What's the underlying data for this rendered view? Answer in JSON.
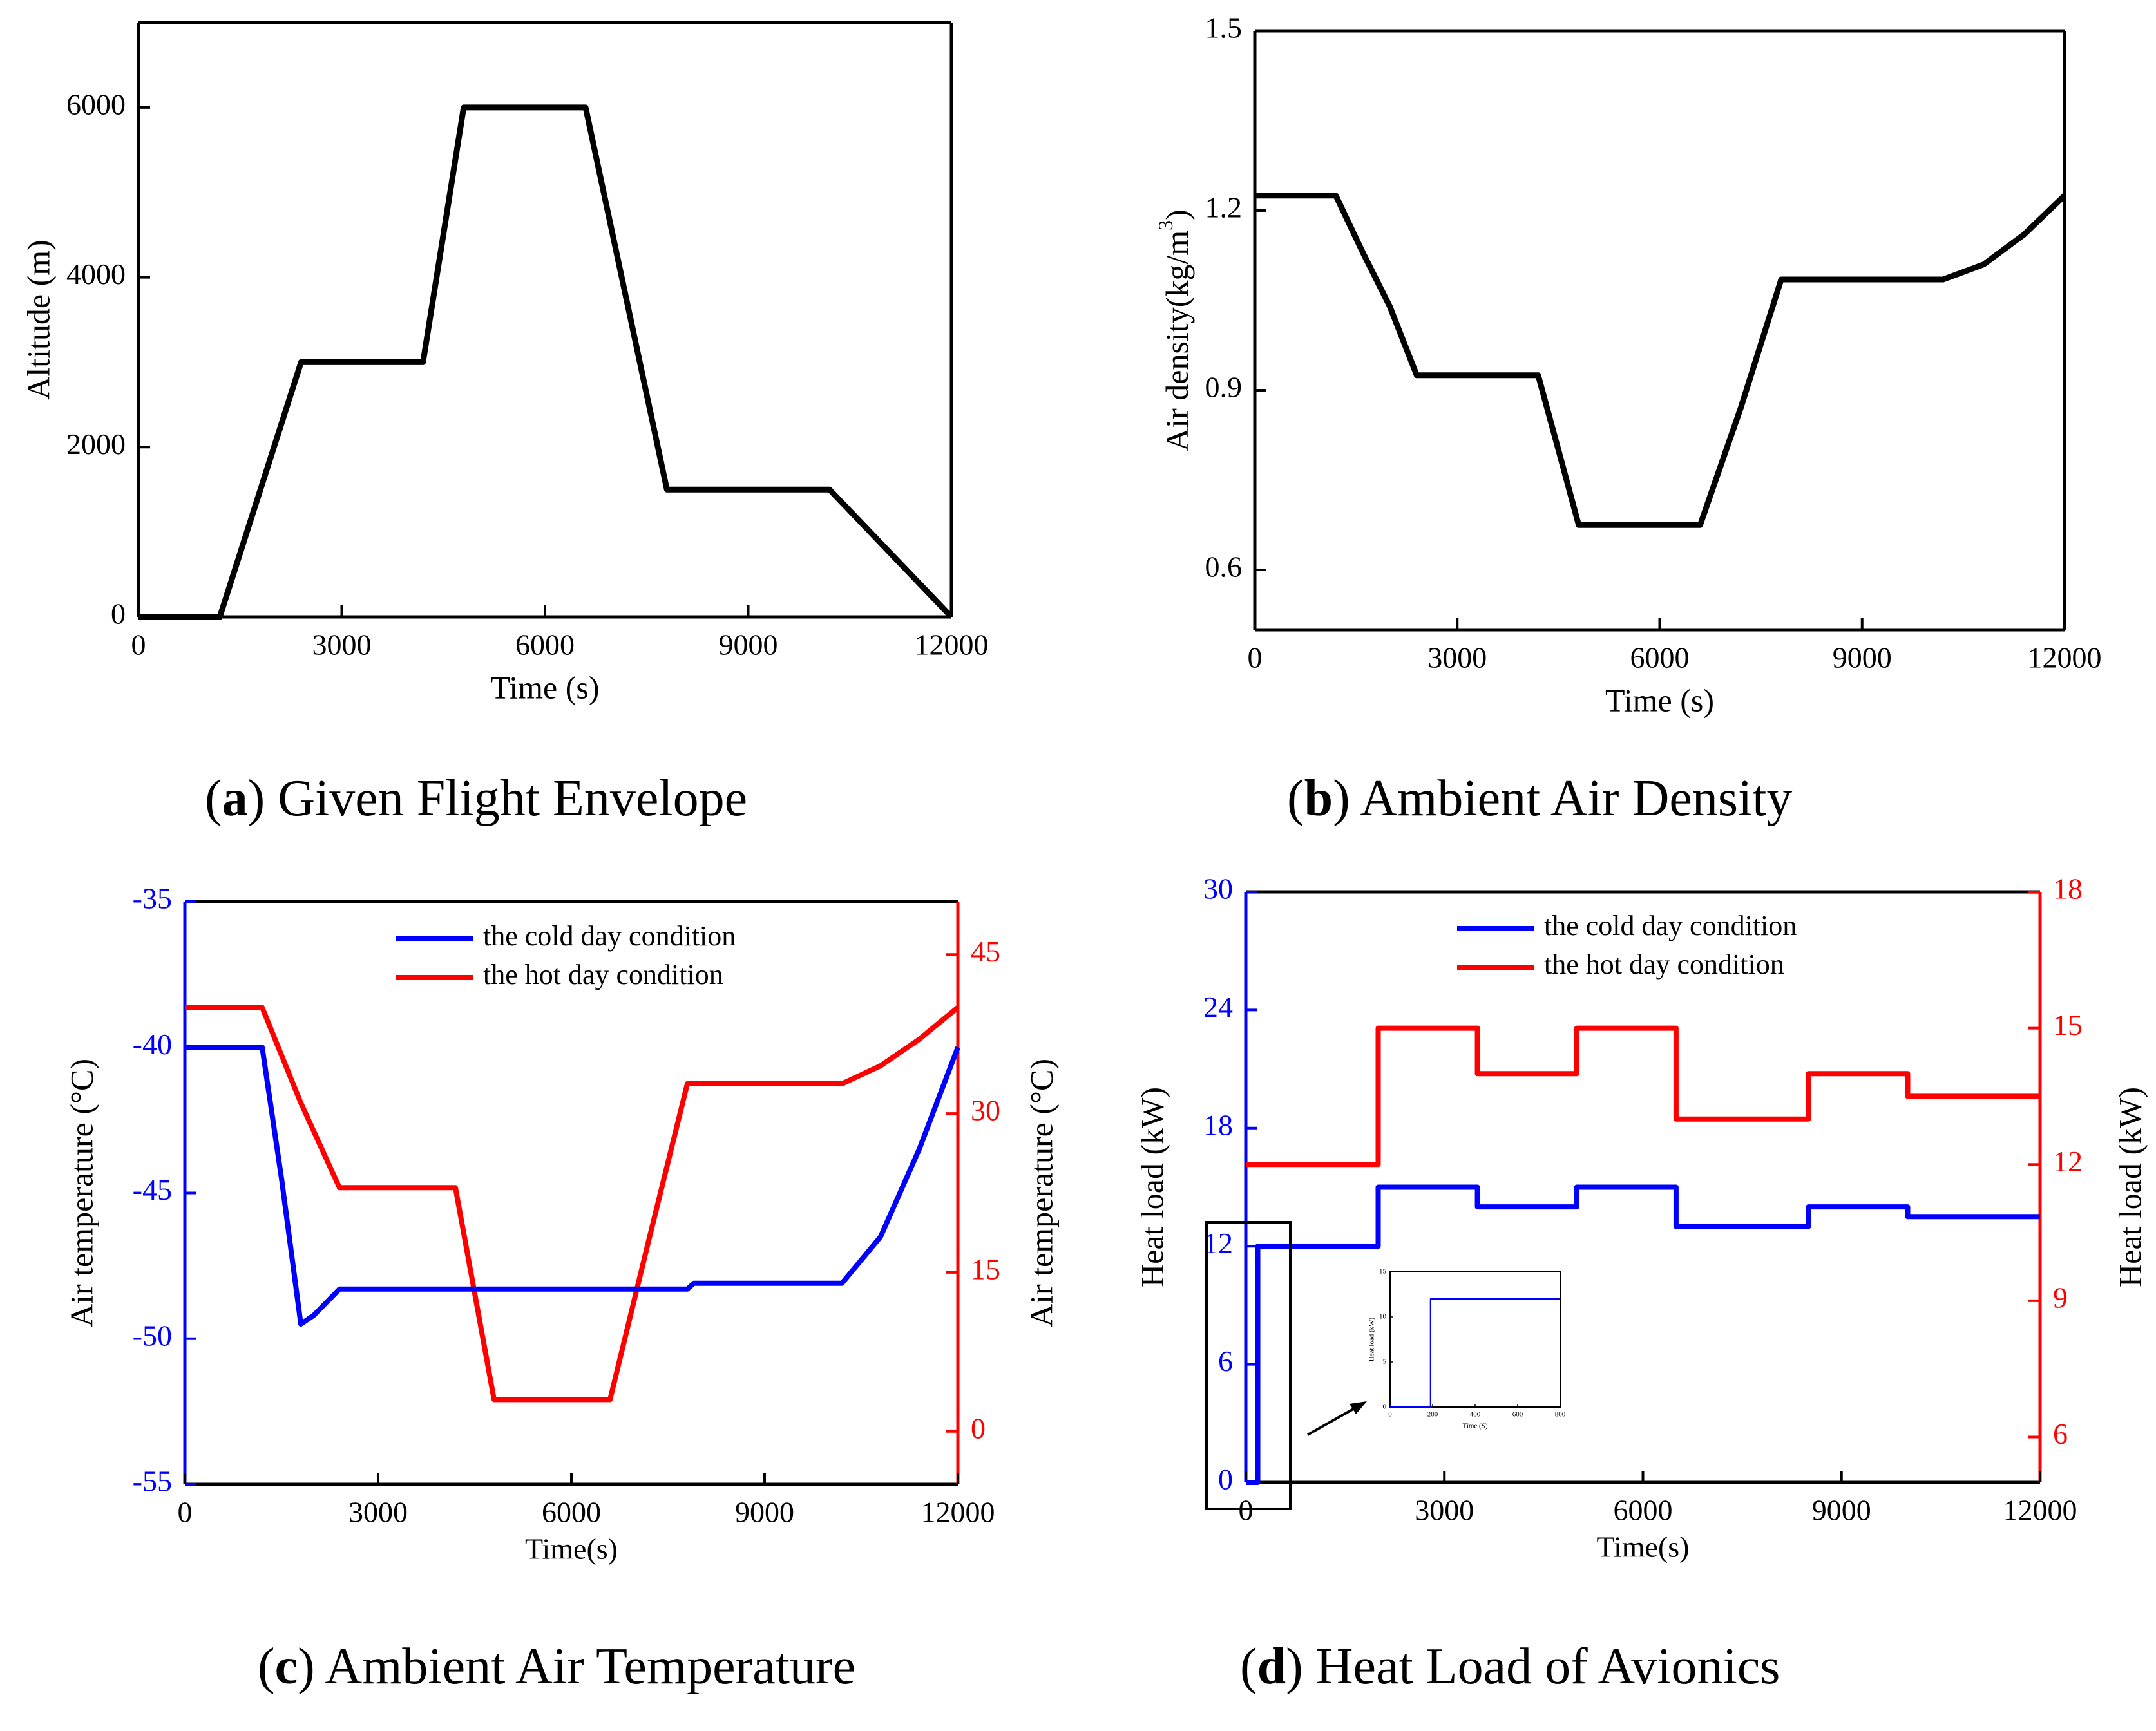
{
  "chart_data": [
    {
      "id": "a",
      "type": "line",
      "caption_letter": "a",
      "caption_text": "Given Flight Envelope",
      "xlabel": "Time (s)",
      "ylabel": "Altitude (m)",
      "xlim": [
        0,
        12000
      ],
      "ylim": [
        0,
        7000
      ],
      "xticks": [
        0,
        3000,
        6000,
        9000,
        12000
      ],
      "yticks": [
        0,
        2000,
        4000,
        6000
      ],
      "series": [
        {
          "name": "Altitude",
          "color": "#000000",
          "points": [
            [
              0,
              0
            ],
            [
              1200,
              0
            ],
            [
              2400,
              3000
            ],
            [
              4200,
              3000
            ],
            [
              4800,
              6000
            ],
            [
              6600,
              6000
            ],
            [
              7800,
              1500
            ],
            [
              10200,
              1500
            ],
            [
              12000,
              0
            ]
          ]
        }
      ]
    },
    {
      "id": "b",
      "type": "line",
      "caption_letter": "b",
      "caption_text": "Ambient Air Density",
      "xlabel": "Time (s)",
      "ylabel_main": "Air density(kg/m",
      "ylabel_sup": "3",
      "ylabel_end": ")",
      "xlim": [
        0,
        12000
      ],
      "ylim": [
        0.5,
        1.5
      ],
      "xticks": [
        0,
        3000,
        6000,
        9000,
        12000
      ],
      "yticks": [
        0.6,
        0.9,
        1.2,
        1.5
      ],
      "series": [
        {
          "name": "Air density",
          "color": "#000000",
          "points": [
            [
              0,
              1.225
            ],
            [
              1200,
              1.225
            ],
            [
              1600,
              1.13
            ],
            [
              2000,
              1.04
            ],
            [
              2400,
              0.925
            ],
            [
              4200,
              0.925
            ],
            [
              4500,
              0.8
            ],
            [
              4800,
              0.675
            ],
            [
              6600,
              0.675
            ],
            [
              7200,
              0.87
            ],
            [
              7800,
              1.085
            ],
            [
              10200,
              1.085
            ],
            [
              10800,
              1.11
            ],
            [
              11400,
              1.16
            ],
            [
              12000,
              1.225
            ]
          ]
        }
      ]
    },
    {
      "id": "c",
      "type": "line",
      "caption_letter": "c",
      "caption_text": "Ambient Air Temperature",
      "xlabel": "Time(s)",
      "ylabel_left": "Air temperature (°C)",
      "ylabel_right": "Air temperature (°C)",
      "xlim": [
        0,
        12000
      ],
      "ylim_left": [
        -55,
        -35
      ],
      "ylim_right": [
        -5,
        50
      ],
      "xticks": [
        0,
        3000,
        6000,
        9000,
        12000
      ],
      "yticks_left": [
        -55,
        -50,
        -45,
        -40,
        -35
      ],
      "yticks_right": [
        0,
        15,
        30,
        45
      ],
      "left_axis_color": "#0000ff",
      "right_axis_color": "#ff0000",
      "series": [
        {
          "name": "the cold day condition",
          "color": "#0000ff",
          "axis": "left",
          "points": [
            [
              0,
              -40
            ],
            [
              1200,
              -40
            ],
            [
              1500,
              -44.5
            ],
            [
              1800,
              -49.5
            ],
            [
              2000,
              -49.2
            ],
            [
              2400,
              -48.3
            ],
            [
              7800,
              -48.3
            ],
            [
              7900,
              -48.1
            ],
            [
              10200,
              -48.1
            ],
            [
              10800,
              -46.5
            ],
            [
              11400,
              -43.5
            ],
            [
              12000,
              -40
            ]
          ]
        },
        {
          "name": "the hot day condition",
          "color": "#ff0000",
          "axis": "right",
          "points": [
            [
              0,
              40
            ],
            [
              1200,
              40
            ],
            [
              1800,
              31
            ],
            [
              2400,
              23
            ],
            [
              4200,
              23
            ],
            [
              4800,
              3
            ],
            [
              6600,
              3
            ],
            [
              7200,
              18
            ],
            [
              7800,
              32.8
            ],
            [
              10200,
              32.8
            ],
            [
              10800,
              34.5
            ],
            [
              11400,
              37
            ],
            [
              12000,
              40
            ]
          ]
        }
      ],
      "legend": [
        "the cold day condition",
        "the hot day condition"
      ]
    },
    {
      "id": "d",
      "type": "line",
      "caption_letter": "d",
      "caption_text": "Heat Load of Avionics",
      "xlabel": "Time(s)",
      "ylabel_left": "Heat load (kW)",
      "ylabel_right": "Heat load (kW)",
      "xlim": [
        0,
        12000
      ],
      "ylim_left": [
        0,
        30
      ],
      "ylim_right": [
        5,
        18
      ],
      "xticks": [
        0,
        3000,
        6000,
        9000,
        12000
      ],
      "yticks_left": [
        0,
        6,
        12,
        18,
        24,
        30
      ],
      "yticks_right": [
        6,
        9,
        12,
        15,
        18
      ],
      "left_axis_color": "#0000ff",
      "right_axis_color": "#ff0000",
      "series": [
        {
          "name": "the cold day condition",
          "color": "#0000ff",
          "axis": "left",
          "points": [
            [
              0,
              0
            ],
            [
              180,
              0
            ],
            [
              180,
              12
            ],
            [
              2000,
              12
            ],
            [
              2000,
              15
            ],
            [
              3500,
              15
            ],
            [
              3500,
              14
            ],
            [
              5000,
              14
            ],
            [
              5000,
              15
            ],
            [
              6500,
              15
            ],
            [
              6500,
              13
            ],
            [
              8500,
              13
            ],
            [
              8500,
              14
            ],
            [
              10000,
              14
            ],
            [
              10000,
              13.5
            ],
            [
              12000,
              13.5
            ]
          ]
        },
        {
          "name": "the hot day condition",
          "color": "#ff0000",
          "axis": "right",
          "points": [
            [
              0,
              12
            ],
            [
              2000,
              12
            ],
            [
              2000,
              15
            ],
            [
              3500,
              15
            ],
            [
              3500,
              14
            ],
            [
              5000,
              14
            ],
            [
              5000,
              15
            ],
            [
              6500,
              15
            ],
            [
              6500,
              13
            ],
            [
              8500,
              13
            ],
            [
              8500,
              14
            ],
            [
              10000,
              14
            ],
            [
              10000,
              13.5
            ],
            [
              12000,
              13.5
            ]
          ]
        }
      ],
      "legend": [
        "the cold day condition",
        "the hot day condition"
      ],
      "inset": {
        "xlabel": "Time (S)",
        "ylabel": "Heat load (kW)",
        "xlim": [
          0,
          800
        ],
        "ylim": [
          0,
          15
        ],
        "xticks": [
          0,
          200,
          400,
          600,
          800
        ],
        "yticks": [
          0,
          5,
          10,
          15
        ],
        "points": [
          [
            0,
            0
          ],
          [
            190,
            0
          ],
          [
            190,
            12
          ],
          [
            800,
            12
          ]
        ]
      }
    }
  ]
}
